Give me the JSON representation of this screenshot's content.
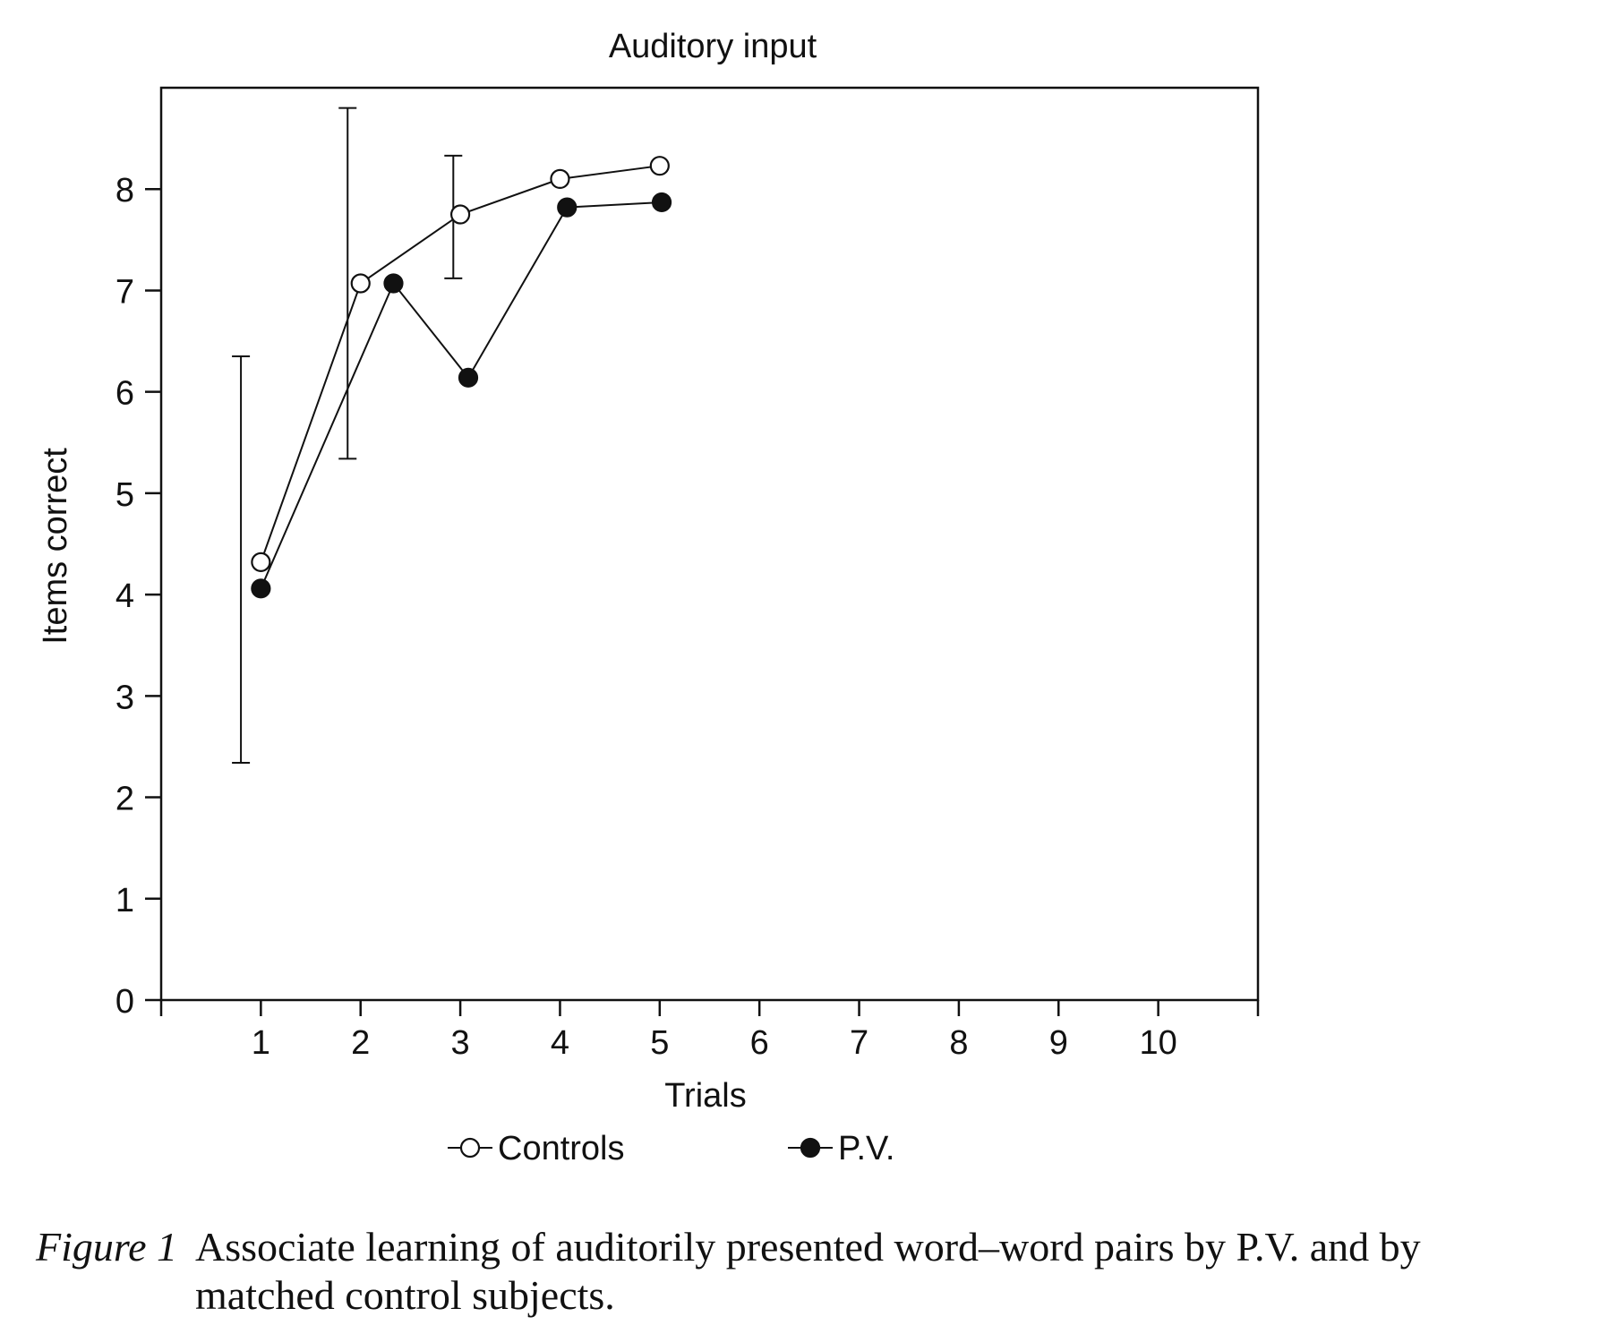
{
  "chart_data": {
    "type": "line",
    "title": "Auditory input",
    "xlabel": "Trials",
    "ylabel": "Items correct",
    "xlim": [
      0,
      11
    ],
    "ylim": [
      0,
      9
    ],
    "xticks": [
      1,
      2,
      3,
      4,
      5,
      6,
      7,
      8,
      9,
      10
    ],
    "yticks": [
      0,
      1,
      2,
      3,
      4,
      5,
      6,
      7,
      8
    ],
    "grid": false,
    "legend_position": "bottom",
    "series": [
      {
        "name": "Controls",
        "marker": "open-circle",
        "points": [
          {
            "x": 1,
            "y": 4.32
          },
          {
            "x": 2,
            "y": 7.07
          },
          {
            "x": 3,
            "y": 7.75
          },
          {
            "x": 4,
            "y": 8.1
          },
          {
            "x": 5,
            "y": 8.23
          }
        ]
      },
      {
        "name": "P.V.",
        "marker": "filled-circle",
        "points": [
          {
            "x": 1,
            "y": 4.06
          },
          {
            "x": 2.33,
            "y": 7.07
          },
          {
            "x": 3.08,
            "y": 6.14
          },
          {
            "x": 4.07,
            "y": 7.82
          },
          {
            "x": 5.02,
            "y": 7.87
          }
        ]
      }
    ],
    "error_bars": [
      {
        "x": 0.8,
        "low": 2.34,
        "high": 6.35
      },
      {
        "x": 1.87,
        "low": 5.34,
        "high": 8.8
      },
      {
        "x": 2.93,
        "low": 7.12,
        "high": 8.33
      }
    ]
  },
  "caption": {
    "label": "Figure 1",
    "line1": "Associate learning of auditorily presented word–word pairs by P.V. and by",
    "line2": "matched control subjects."
  }
}
